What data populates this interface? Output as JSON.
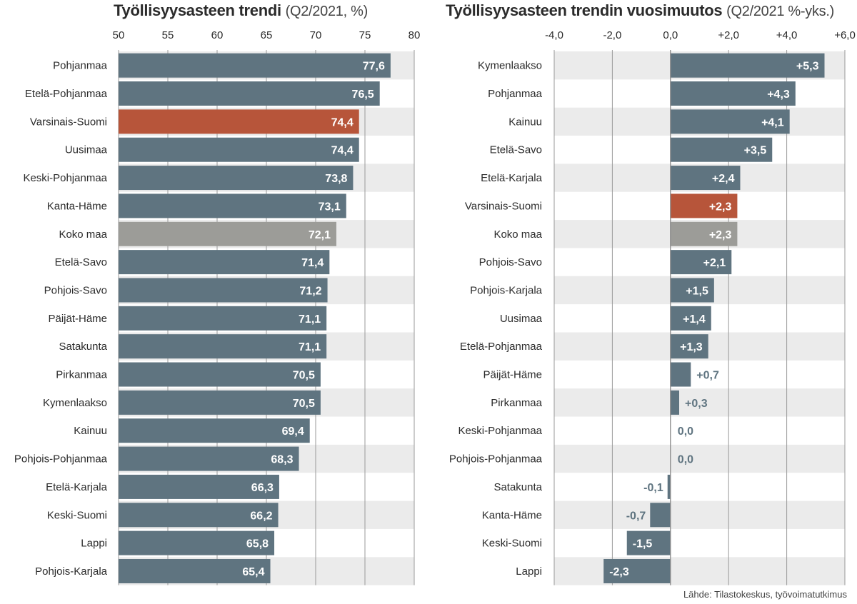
{
  "colors": {
    "bar": "#5f7480",
    "highlight": "#b7553a",
    "national": "#9c9c98",
    "band": "#ebebeb",
    "grid": "#9a9a9a",
    "label_out": "#5f7480"
  },
  "source": "Lähde: Tilastokeskus, työvoimatutkimus",
  "chart_data": [
    {
      "type": "bar",
      "orientation": "horizontal",
      "title": "Työllisyysasteen trendi",
      "subtitle": "(Q2/2021, %)",
      "xlabel": "",
      "ylabel": "",
      "xlim": [
        50,
        80
      ],
      "ticks": [
        50,
        55,
        60,
        65,
        70,
        75,
        80
      ],
      "tick_labels": [
        "50",
        "55",
        "60",
        "65",
        "70",
        "75",
        "80"
      ],
      "grid": true,
      "highlight": "Varsinais-Suomi",
      "national": "Koko maa",
      "categories": [
        "Pohjanmaa",
        "Etelä-Pohjanmaa",
        "Varsinais-Suomi",
        "Uusimaa",
        "Keski-Pohjanmaa",
        "Kanta-Häme",
        "Koko maa",
        "Etelä-Savo",
        "Pohjois-Savo",
        "Päijät-Häme",
        "Satakunta",
        "Pirkanmaa",
        "Kymenlaakso",
        "Kainuu",
        "Pohjois-Pohjanmaa",
        "Etelä-Karjala",
        "Keski-Suomi",
        "Lappi",
        "Pohjois-Karjala"
      ],
      "values": [
        77.6,
        76.5,
        74.4,
        74.4,
        73.8,
        73.1,
        72.1,
        71.4,
        71.2,
        71.1,
        71.1,
        70.5,
        70.5,
        69.4,
        68.3,
        66.3,
        66.2,
        65.8,
        65.4
      ],
      "value_labels": [
        "77,6",
        "76,5",
        "74,4",
        "74,4",
        "73,8",
        "73,1",
        "72,1",
        "71,4",
        "71,2",
        "71,1",
        "71,1",
        "70,5",
        "70,5",
        "69,4",
        "68,3",
        "66,3",
        "66,2",
        "65,8",
        "65,4"
      ]
    },
    {
      "type": "bar",
      "orientation": "horizontal",
      "title": "Työllisyysasteen trendin vuosimuutos",
      "subtitle": "(Q2/2021 %-yks.)",
      "xlabel": "",
      "ylabel": "",
      "xlim": [
        -4,
        6
      ],
      "ticks": [
        -4,
        -2,
        0,
        2,
        4,
        6
      ],
      "tick_labels": [
        "-4,0",
        "-2,0",
        "0,0",
        "+2,0",
        "+4,0",
        "+6,0"
      ],
      "grid": true,
      "highlight": "Varsinais-Suomi",
      "national": "Koko maa",
      "categories": [
        "Kymenlaakso",
        "Pohjanmaa",
        "Kainuu",
        "Etelä-Savo",
        "Etelä-Karjala",
        "Varsinais-Suomi",
        "Koko maa",
        "Pohjois-Savo",
        "Pohjois-Karjala",
        "Uusimaa",
        "Etelä-Pohjanmaa",
        "Päijät-Häme",
        "Pirkanmaa",
        "Keski-Pohjanmaa",
        "Pohjois-Pohjanmaa",
        "Satakunta",
        "Kanta-Häme",
        "Keski-Suomi",
        "Lappi"
      ],
      "values": [
        5.3,
        4.3,
        4.1,
        3.5,
        2.4,
        2.3,
        2.3,
        2.1,
        1.5,
        1.4,
        1.3,
        0.7,
        0.3,
        0.0,
        0.0,
        -0.1,
        -0.7,
        -1.5,
        -2.3
      ],
      "value_labels": [
        "+5,3",
        "+4,3",
        "+4,1",
        "+3,5",
        "+2,4",
        "+2,3",
        "+2,3",
        "+2,1",
        "+1,5",
        "+1,4",
        "+1,3",
        "+0,7",
        "+0,3",
        "0,0",
        "0,0",
        "-0,1",
        "-0,7",
        "-1,5",
        "-2,3"
      ]
    }
  ]
}
